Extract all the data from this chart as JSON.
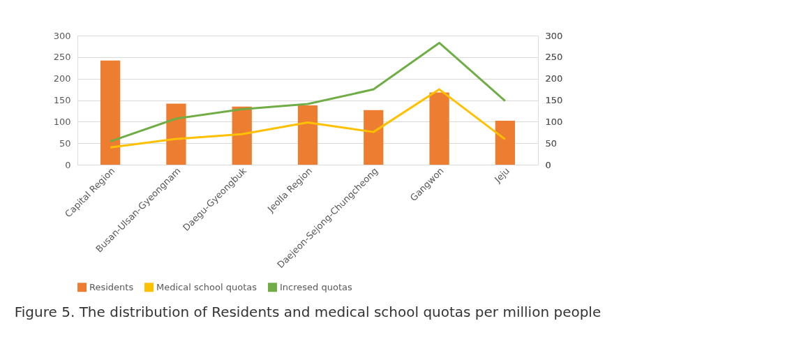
{
  "chart_data": {
    "type": "bar",
    "title": "Figure 5. The distribution of Residents and medical school quotas per million people",
    "categories": [
      "Capital Region",
      "Busan-Ulsan-Gyeongnam",
      "Daegu-Gyeongbuk",
      "Jeolla Region",
      "Daejeon-Sejong-Chungcheong",
      "Gangwon",
      "Jeju"
    ],
    "series": [
      {
        "name": "Residents",
        "color": "#ed7d31",
        "values": [
          242,
          142,
          135,
          138,
          127,
          168,
          102
        ]
      },
      {
        "name": "Medical school quotas",
        "color": "#ffc000",
        "type": "line",
        "axis": "y2",
        "values": [
          40,
          60,
          71,
          98,
          76,
          175,
          59
        ]
      },
      {
        "name": "Incresed quotas",
        "color": "#70ad47",
        "type": "line",
        "axis": "y2",
        "values": [
          54,
          107,
          129,
          141,
          175,
          283,
          148
        ]
      }
    ],
    "ylim": [
      0,
      300
    ],
    "yticks": [
      0,
      50,
      100,
      150,
      200,
      250,
      300
    ],
    "y2lim": [
      0,
      300
    ],
    "y2ticks": [
      0,
      50,
      100,
      150,
      200,
      250,
      300
    ],
    "grid": "y",
    "legend": "bottom",
    "marker": "none",
    "line_style": "solid"
  }
}
